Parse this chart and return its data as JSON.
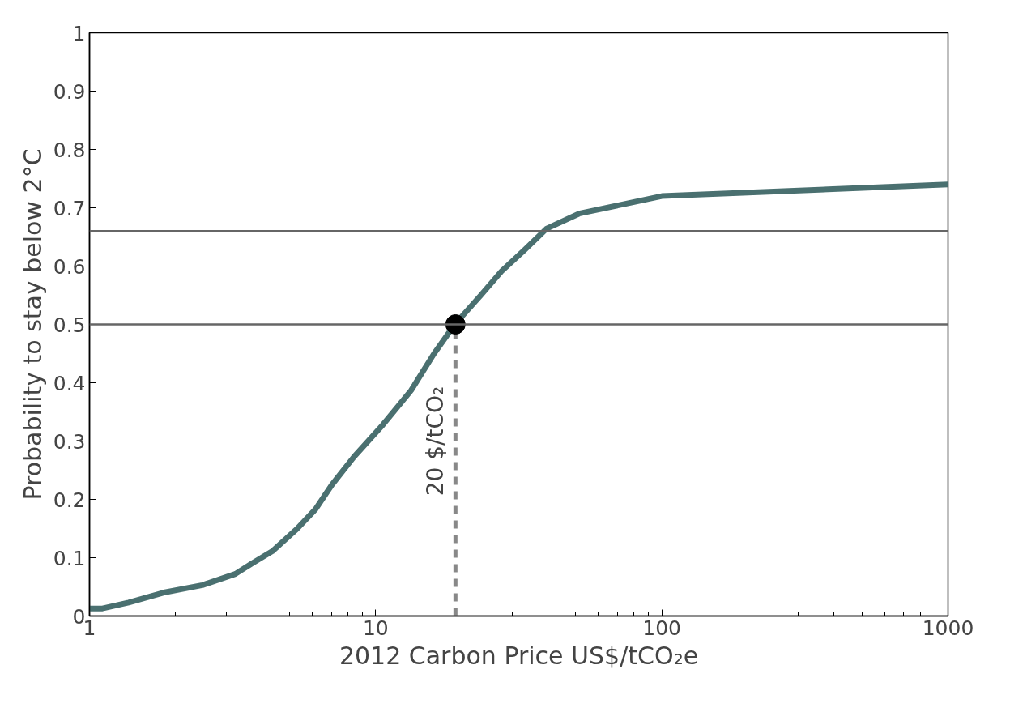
{
  "chart_data": {
    "type": "line",
    "xlabel": "2012 Carbon Price US$/tCO₂e",
    "ylabel": "Probability to stay below 2°C",
    "log": "x",
    "xlim": [
      1,
      1000
    ],
    "xticks": [
      1,
      10,
      100,
      1000
    ],
    "ylim": [
      0,
      1
    ],
    "yticks": [
      0,
      0.1,
      0.2,
      0.3,
      0.4,
      0.5,
      0.6,
      0.7,
      0.8,
      0.9,
      1
    ],
    "grid": false,
    "series": [
      {
        "color": "#4a7070",
        "line_style": "solid",
        "x": [
          1,
          1.11,
          1.37,
          1.85,
          2.48,
          3.23,
          3.69,
          4.35,
          5.3,
          6.16,
          7.03,
          8.4,
          10.6,
          13.3,
          16,
          18.9,
          23.3,
          27.5,
          33,
          39.5,
          51.4,
          100,
          1000
        ],
        "values": [
          0.013,
          0.013,
          0.023,
          0.041,
          0.053,
          0.072,
          0.09,
          0.111,
          0.149,
          0.183,
          0.225,
          0.273,
          0.328,
          0.387,
          0.45,
          0.5,
          0.55,
          0.591,
          0.627,
          0.664,
          0.69,
          0.72,
          0.74
        ]
      },
      {
        "type": "line",
        "color": "#888888",
        "line_style": "dashed",
        "x": [
          19,
          19
        ],
        "values": [
          0,
          0.5
        ]
      },
      {
        "type": "scatter",
        "color": "#000000",
        "marker": "circle",
        "x": [
          19
        ],
        "values": [
          0.5
        ]
      }
    ],
    "ref_lines": [
      {
        "axis": "y",
        "value": 0.5,
        "color": "#666666"
      },
      {
        "axis": "y",
        "value": 0.66,
        "color": "#666666"
      }
    ],
    "annotations": [
      {
        "text": "20 $/tCO₂",
        "x": 19,
        "y": 0.3
      }
    ]
  }
}
